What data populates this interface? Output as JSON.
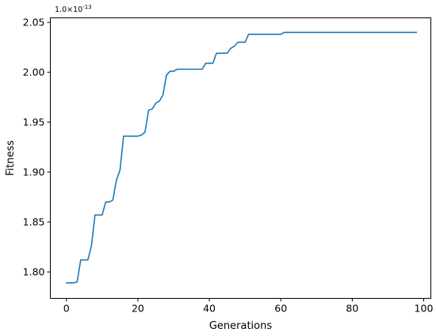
{
  "chart_data": {
    "type": "line",
    "title": "",
    "xlabel": "Generations",
    "ylabel": "Fitness",
    "y_offset_label": "1.0×10",
    "y_offset_exponent": "-13",
    "xlim": [
      -4.5,
      102
    ],
    "ylim": [
      1.7735,
      2.0545
    ],
    "x_ticks": [
      0,
      20,
      40,
      60,
      80,
      100
    ],
    "x_tick_labels": [
      "0",
      "20",
      "40",
      "60",
      "80",
      "100"
    ],
    "y_ticks": [
      1.8,
      1.85,
      1.9,
      1.95,
      2.0,
      2.05
    ],
    "y_tick_labels": [
      "1.80",
      "1.85",
      "1.90",
      "1.95",
      "2.00",
      "2.05"
    ],
    "grid": false,
    "line_color": "#1f77b4",
    "series": [
      {
        "points": [
          [
            0,
            1.789
          ],
          [
            1,
            1.789
          ],
          [
            2,
            1.789
          ],
          [
            3,
            1.79
          ],
          [
            4,
            1.812
          ],
          [
            5,
            1.812
          ],
          [
            6,
            1.812
          ],
          [
            7,
            1.826
          ],
          [
            8,
            1.857
          ],
          [
            9,
            1.857
          ],
          [
            10,
            1.857
          ],
          [
            11,
            1.87
          ],
          [
            12,
            1.87
          ],
          [
            13,
            1.872
          ],
          [
            14,
            1.892
          ],
          [
            15,
            1.902
          ],
          [
            16,
            1.936
          ],
          [
            17,
            1.936
          ],
          [
            18,
            1.936
          ],
          [
            19,
            1.936
          ],
          [
            20,
            1.936
          ],
          [
            21,
            1.937
          ],
          [
            22,
            1.94
          ],
          [
            23,
            1.962
          ],
          [
            24,
            1.963
          ],
          [
            25,
            1.969
          ],
          [
            26,
            1.971
          ],
          [
            27,
            1.977
          ],
          [
            28,
            1.997
          ],
          [
            29,
            2.001
          ],
          [
            30,
            2.001
          ],
          [
            31,
            2.003
          ],
          [
            32,
            2.003
          ],
          [
            33,
            2.003
          ],
          [
            34,
            2.003
          ],
          [
            35,
            2.003
          ],
          [
            36,
            2.003
          ],
          [
            37,
            2.003
          ],
          [
            38,
            2.003
          ],
          [
            39,
            2.009
          ],
          [
            40,
            2.009
          ],
          [
            41,
            2.009
          ],
          [
            42,
            2.019
          ],
          [
            43,
            2.019
          ],
          [
            44,
            2.019
          ],
          [
            45,
            2.019
          ],
          [
            46,
            2.024
          ],
          [
            47,
            2.026
          ],
          [
            48,
            2.03
          ],
          [
            49,
            2.03
          ],
          [
            50,
            2.03
          ],
          [
            51,
            2.038
          ],
          [
            52,
            2.038
          ],
          [
            53,
            2.038
          ],
          [
            54,
            2.038
          ],
          [
            55,
            2.038
          ],
          [
            56,
            2.038
          ],
          [
            57,
            2.038
          ],
          [
            58,
            2.038
          ],
          [
            59,
            2.038
          ],
          [
            60,
            2.038
          ],
          [
            61,
            2.04
          ],
          [
            70,
            2.04
          ],
          [
            80,
            2.04
          ],
          [
            90,
            2.04
          ],
          [
            98,
            2.04
          ]
        ]
      }
    ]
  }
}
